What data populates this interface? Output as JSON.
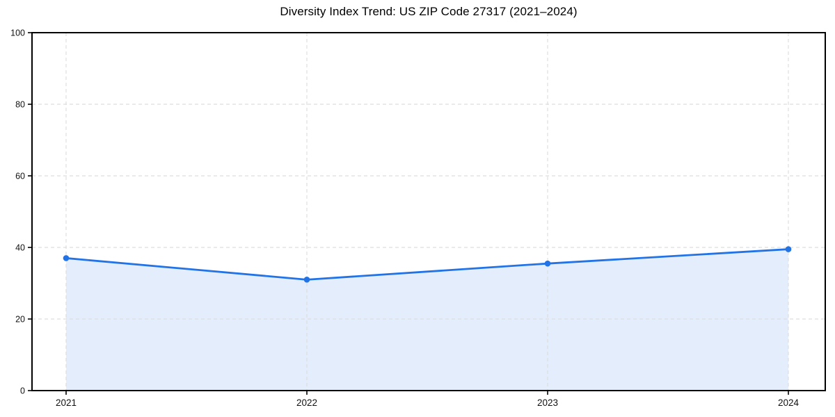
{
  "chart_data": {
    "type": "area",
    "title": "Diversity Index Trend: US ZIP Code 27317 (2021–2024)",
    "categories": [
      "2021",
      "2022",
      "2023",
      "2024"
    ],
    "values": [
      37.0,
      31.0,
      35.5,
      39.5
    ],
    "xlabel": "",
    "ylabel": "",
    "ylim": [
      0,
      100
    ],
    "yticks": [
      0,
      20,
      40,
      60,
      80,
      100
    ],
    "grid": true,
    "grid_style": "dashed",
    "legend": "none",
    "marker": "circle",
    "line_color": "#2273e6",
    "fill_color": "#e4edfc",
    "grid_color": "#dedede",
    "axis_color": "#000000",
    "tick_label_color": "#111111"
  }
}
